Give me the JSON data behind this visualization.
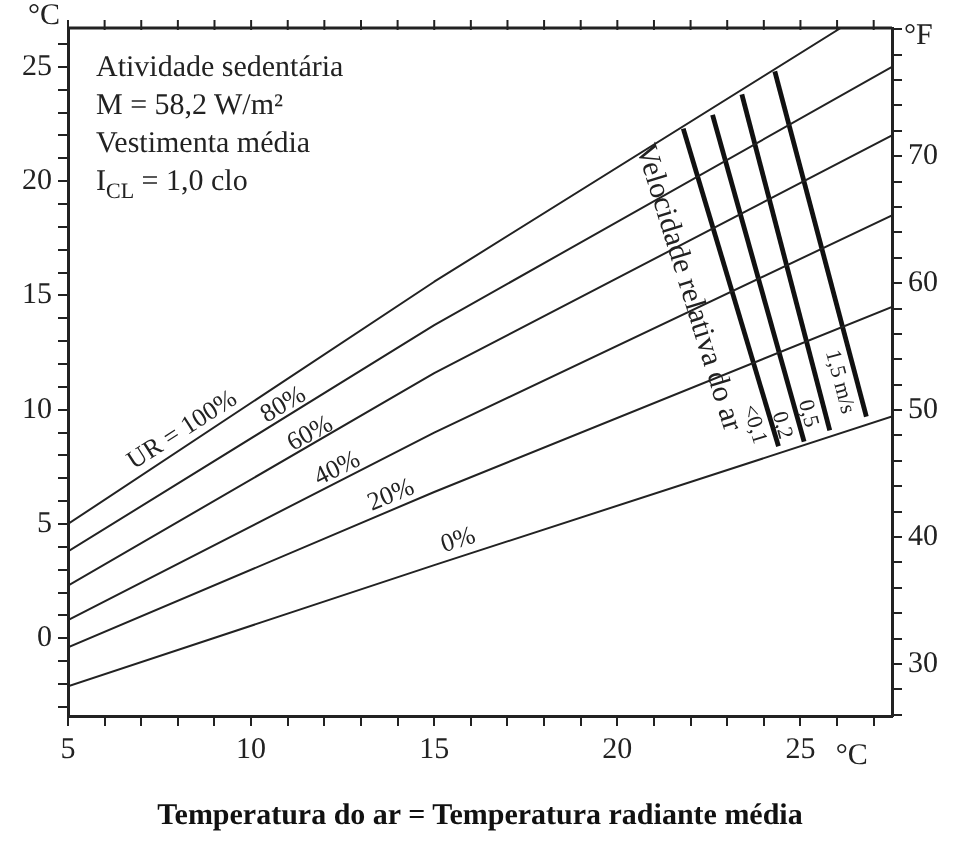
{
  "chart_data": {
    "type": "line",
    "xlabel": "Temperatura do ar = Temperatura radiante média",
    "ylabel": "°C",
    "y2label": "°F",
    "annotations": [
      "Atividade sedentária",
      "M = 58,2 W/m²",
      "Vestimenta média",
      "I$_{CL}$ = 1,0 clo",
      "Velocidade relativa do ar",
      "°C"
    ],
    "series": [
      {
        "name": "UR = 100%",
        "color": "#222222",
        "x": [
          5,
          15,
          26.1
        ],
        "values": [
          5.0,
          15.6,
          26.7
        ]
      },
      {
        "name": "80%",
        "color": "#222222",
        "x": [
          5,
          15,
          27.5
        ],
        "values": [
          3.8,
          13.7,
          25.0
        ]
      },
      {
        "name": "60%",
        "color": "#222222",
        "x": [
          5,
          15,
          27.5
        ],
        "values": [
          2.3,
          11.6,
          22.0
        ]
      },
      {
        "name": "40%",
        "color": "#222222",
        "x": [
          5,
          15,
          27.5
        ],
        "values": [
          0.8,
          9.0,
          18.5
        ]
      },
      {
        "name": "20%",
        "color": "#222222",
        "x": [
          5,
          15,
          27.5
        ],
        "values": [
          -0.4,
          6.4,
          14.5
        ]
      },
      {
        "name": "0%",
        "color": "#222222",
        "x": [
          5,
          15,
          27.5
        ],
        "values": [
          -2.1,
          3.2,
          9.7
        ]
      },
      {
        "name": "<0,1",
        "color": "#111111",
        "x": [
          21.8,
          24.4
        ],
        "values": [
          22.3,
          8.4
        ]
      },
      {
        "name": "0,2",
        "color": "#111111",
        "x": [
          22.6,
          25.1
        ],
        "values": [
          22.9,
          8.6
        ]
      },
      {
        "name": "0,5",
        "color": "#111111",
        "x": [
          23.4,
          25.8
        ],
        "values": [
          23.8,
          9.1
        ]
      },
      {
        "name": "1,5 m/s",
        "color": "#111111",
        "x": [
          24.3,
          26.8
        ],
        "values": [
          24.8,
          9.7
        ]
      }
    ],
    "xlim": [
      5,
      27.5
    ],
    "xticks": [
      5,
      {
        "value": 6,
        "label": null
      },
      {
        "value": 7,
        "label": null
      },
      {
        "value": 8,
        "label": null
      },
      {
        "value": 9,
        "label": null
      },
      10,
      {
        "value": 11,
        "label": null
      },
      {
        "value": 12,
        "label": null
      },
      {
        "value": 13,
        "label": null
      },
      {
        "value": 14,
        "label": null
      },
      15,
      {
        "value": 16,
        "label": null
      },
      {
        "value": 17,
        "label": null
      },
      {
        "value": 18,
        "label": null
      },
      {
        "value": 19,
        "label": null
      },
      20,
      {
        "value": 21,
        "label": null
      },
      {
        "value": 22,
        "label": null
      },
      {
        "value": 23,
        "label": null
      },
      {
        "value": 24,
        "label": null
      },
      25,
      {
        "value": 26,
        "label": null
      },
      {
        "value": 27,
        "label": null
      }
    ],
    "ylim": [
      -3.4,
      26.7
    ],
    "yticks": [
      {
        "value": -3,
        "label": null
      },
      {
        "value": -2,
        "label": null
      },
      {
        "value": -1,
        "label": null
      },
      0,
      {
        "value": 1,
        "label": null
      },
      {
        "value": 2,
        "label": null
      },
      {
        "value": 3,
        "label": null
      },
      {
        "value": 4,
        "label": null
      },
      5,
      {
        "value": 6,
        "label": null
      },
      {
        "value": 7,
        "label": null
      },
      {
        "value": 8,
        "label": null
      },
      {
        "value": 9,
        "label": null
      },
      10,
      {
        "value": 11,
        "label": null
      },
      {
        "value": 12,
        "label": null
      },
      {
        "value": 13,
        "label": null
      },
      {
        "value": 14,
        "label": null
      },
      15,
      {
        "value": 16,
        "label": null
      },
      {
        "value": 17,
        "label": null
      },
      {
        "value": 18,
        "label": null
      },
      {
        "value": 19,
        "label": null
      },
      20,
      {
        "value": 21,
        "label": null
      },
      {
        "value": 22,
        "label": null
      },
      {
        "value": 23,
        "label": null
      },
      {
        "value": 24,
        "label": null
      },
      25,
      {
        "value": 26,
        "label": null
      }
    ],
    "y2lim": [
      25.9,
      80.1
    ],
    "y2ticks": [
      {
        "value": 26,
        "label": null
      },
      {
        "value": 28,
        "label": null
      },
      30,
      {
        "value": 32,
        "label": null
      },
      {
        "value": 34,
        "label": null
      },
      {
        "value": 36,
        "label": null
      },
      {
        "value": 38,
        "label": null
      },
      40,
      {
        "value": 42,
        "label": null
      },
      {
        "value": 44,
        "label": null
      },
      {
        "value": 46,
        "label": null
      },
      {
        "value": 48,
        "label": null
      },
      50,
      {
        "value": 52,
        "label": null
      },
      {
        "value": 54,
        "label": null
      },
      {
        "value": 56,
        "label": null
      },
      {
        "value": 58,
        "label": null
      },
      60,
      {
        "value": 62,
        "label": null
      },
      {
        "value": 64,
        "label": null
      },
      {
        "value": 66,
        "label": null
      },
      {
        "value": 68,
        "label": null
      },
      70,
      {
        "value": 72,
        "label": null
      },
      {
        "value": 74,
        "label": null
      },
      {
        "value": 76,
        "label": null
      },
      {
        "value": 78,
        "label": null
      },
      {
        "value": 80,
        "label": null
      }
    ],
    "grid": false,
    "legend": false,
    "marker": "none",
    "line_style": "solid"
  }
}
